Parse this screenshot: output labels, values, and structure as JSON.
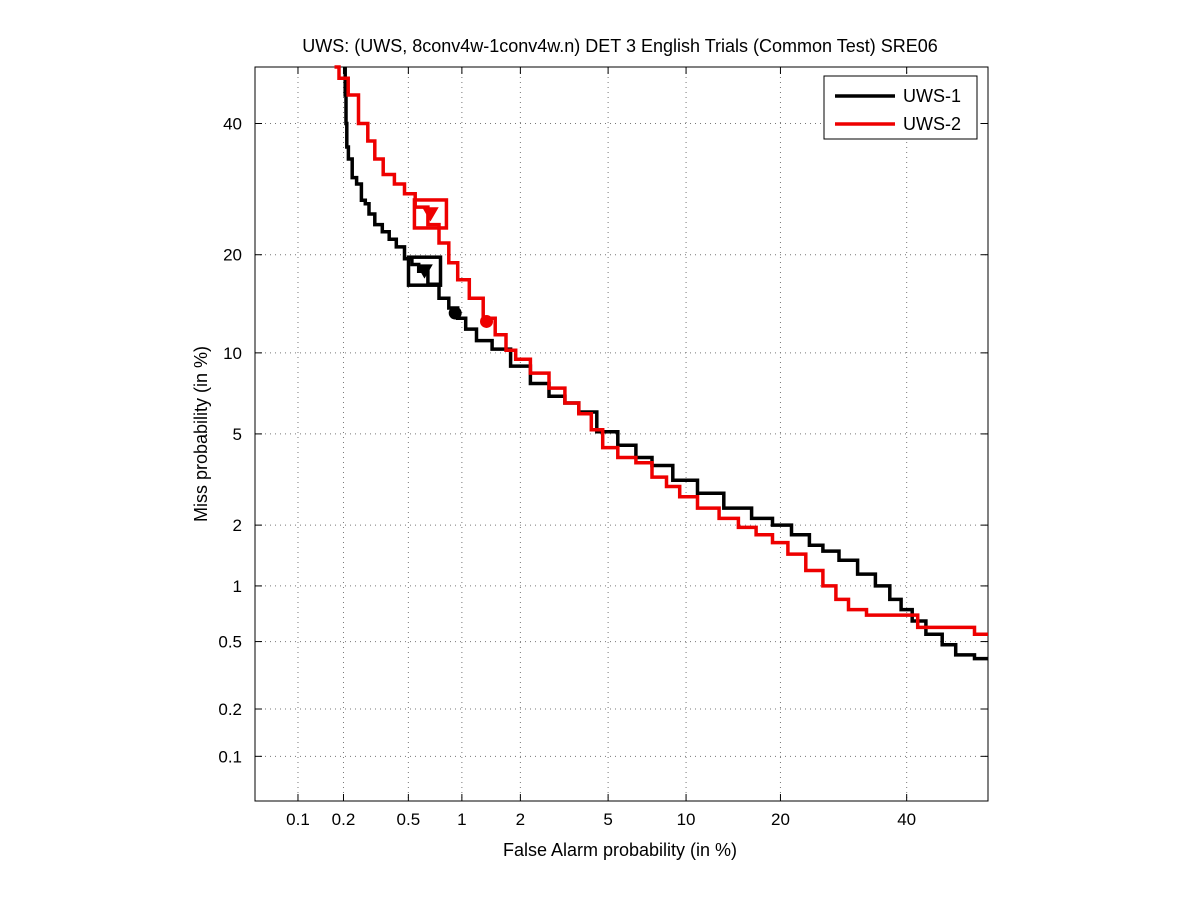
{
  "chart_data": {
    "type": "line",
    "title": "UWS: (UWS, 8conv4w-1conv4w.n) DET 3 English Trials (Common Test) SRE06",
    "xlabel": "False Alarm probability (in %)",
    "ylabel": "Miss probability (in %)",
    "scale": "normal-deviate (probit) on both axes",
    "xlim": [
      0.05,
      55
    ],
    "ylim": [
      0.05,
      50
    ],
    "x_ticks": [
      0.1,
      0.2,
      0.5,
      1,
      2,
      5,
      10,
      20,
      40
    ],
    "x_tick_labels": [
      "0.1",
      "0.2",
      "0.5",
      "1",
      "2",
      "5",
      "10",
      "20",
      "40"
    ],
    "y_ticks": [
      0.1,
      0.2,
      0.5,
      1,
      2,
      5,
      10,
      20,
      40
    ],
    "y_tick_labels": [
      "0.1",
      "0.2",
      "0.5",
      "1",
      "2",
      "5",
      "10",
      "20",
      "40"
    ],
    "grid": true,
    "legend_position": "top-right",
    "series": [
      {
        "name": "UWS-1",
        "color": "#000000",
        "points": [
          [
            0.205,
            50
          ],
          [
            0.205,
            45
          ],
          [
            0.21,
            40
          ],
          [
            0.21,
            36
          ],
          [
            0.22,
            34
          ],
          [
            0.235,
            31
          ],
          [
            0.25,
            30
          ],
          [
            0.27,
            27.5
          ],
          [
            0.28,
            27
          ],
          [
            0.3,
            25.5
          ],
          [
            0.33,
            24
          ],
          [
            0.37,
            23
          ],
          [
            0.4,
            22
          ],
          [
            0.45,
            21
          ],
          [
            0.5,
            19.5
          ],
          [
            0.55,
            18.8
          ],
          [
            0.6,
            18
          ],
          [
            0.7,
            16.5
          ],
          [
            0.8,
            15
          ],
          [
            0.9,
            14
          ],
          [
            1.0,
            13
          ],
          [
            1.1,
            12
          ],
          [
            1.3,
            11
          ],
          [
            1.6,
            10.3
          ],
          [
            2.0,
            9
          ],
          [
            2.5,
            7.8
          ],
          [
            3.0,
            7.0
          ],
          [
            3.5,
            6.6
          ],
          [
            4.0,
            6.1
          ],
          [
            5.0,
            5.1
          ],
          [
            6.0,
            4.5
          ],
          [
            7.0,
            4.0
          ],
          [
            8.0,
            3.7
          ],
          [
            10.0,
            3.2
          ],
          [
            12.0,
            2.8
          ],
          [
            15.0,
            2.4
          ],
          [
            18.0,
            2.15
          ],
          [
            20.0,
            2.0
          ],
          [
            23.0,
            1.8
          ],
          [
            25.0,
            1.6
          ],
          [
            27.0,
            1.5
          ],
          [
            30.0,
            1.35
          ],
          [
            33.0,
            1.15
          ],
          [
            36.0,
            1.0
          ],
          [
            38.0,
            0.85
          ],
          [
            40.0,
            0.75
          ],
          [
            42.0,
            0.65
          ],
          [
            45.0,
            0.55
          ],
          [
            48.0,
            0.48
          ],
          [
            50.0,
            0.42
          ],
          [
            55.0,
            0.4
          ]
        ]
      },
      {
        "name": "UWS-2",
        "color": "#ee0000",
        "points": [
          [
            0.175,
            50
          ],
          [
            0.2,
            48
          ],
          [
            0.23,
            45
          ],
          [
            0.27,
            40
          ],
          [
            0.3,
            37
          ],
          [
            0.33,
            34
          ],
          [
            0.38,
            31.5
          ],
          [
            0.45,
            30
          ],
          [
            0.5,
            28.5
          ],
          [
            0.6,
            26.5
          ],
          [
            0.7,
            24
          ],
          [
            0.8,
            21.5
          ],
          [
            0.9,
            19
          ],
          [
            1.0,
            17
          ],
          [
            1.2,
            15
          ],
          [
            1.4,
            13
          ],
          [
            1.6,
            11.5
          ],
          [
            1.8,
            10.2
          ],
          [
            2.0,
            9.5
          ],
          [
            2.5,
            8.5
          ],
          [
            3.0,
            7.5
          ],
          [
            3.5,
            6.6
          ],
          [
            4.0,
            6.0
          ],
          [
            4.5,
            5.2
          ],
          [
            5.0,
            4.4
          ],
          [
            6.0,
            4.0
          ],
          [
            7.0,
            3.8
          ],
          [
            8.0,
            3.3
          ],
          [
            9.0,
            3.0
          ],
          [
            10.0,
            2.7
          ],
          [
            12.0,
            2.4
          ],
          [
            14.0,
            2.15
          ],
          [
            16.0,
            1.95
          ],
          [
            18.0,
            1.8
          ],
          [
            20.0,
            1.65
          ],
          [
            22.0,
            1.45
          ],
          [
            25.0,
            1.2
          ],
          [
            27.0,
            1.0
          ],
          [
            29.0,
            0.85
          ],
          [
            31.0,
            0.75
          ],
          [
            35.0,
            0.7
          ],
          [
            40.0,
            0.7
          ],
          [
            44.0,
            0.6
          ],
          [
            50.0,
            0.6
          ],
          [
            55.0,
            0.55
          ]
        ]
      }
    ],
    "markers": [
      {
        "series": "UWS-1",
        "kind": "triangle-down",
        "x": 0.62,
        "y": 18
      },
      {
        "series": "UWS-1",
        "kind": "square",
        "x": 0.62,
        "y": 18
      },
      {
        "series": "UWS-1",
        "kind": "circle",
        "x": 0.92,
        "y": 13.5
      },
      {
        "series": "UWS-2",
        "kind": "triangle-down",
        "x": 0.67,
        "y": 25.5
      },
      {
        "series": "UWS-2",
        "kind": "square",
        "x": 0.67,
        "y": 25.5
      },
      {
        "series": "UWS-2",
        "kind": "circle",
        "x": 1.35,
        "y": 12.7
      }
    ]
  }
}
